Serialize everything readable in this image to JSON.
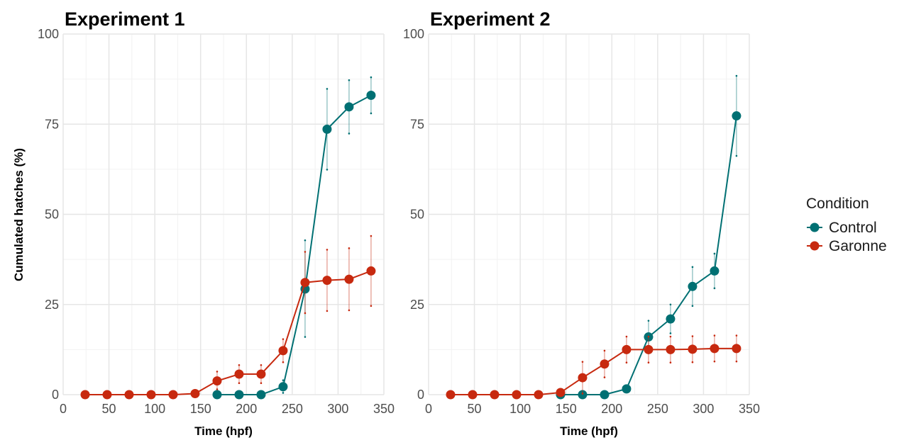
{
  "ylabel": "Cumulated hatches (%)",
  "legend": {
    "title": "Condition",
    "position": "right",
    "entries": [
      {
        "name": "Control",
        "color": "#007073"
      },
      {
        "name": "Garonne",
        "color": "#c7290f"
      }
    ]
  },
  "chart_data": [
    {
      "type": "line",
      "title": "Experiment 1",
      "xlabel": "Time (hpf)",
      "ylabel": "Cumulated hatches (%)",
      "xlim": [
        0,
        350
      ],
      "ylim": [
        0,
        100
      ],
      "xticks": [
        0,
        50,
        100,
        150,
        200,
        250,
        300,
        350
      ],
      "yticks": [
        0,
        25,
        50,
        75,
        100
      ],
      "grid": true,
      "series": [
        {
          "name": "Control",
          "color": "#007073",
          "points": [
            {
              "x": 168,
              "y": 0
            },
            {
              "x": 192,
              "y": 0
            },
            {
              "x": 216,
              "y": 0
            },
            {
              "x": 240,
              "y": 2.2,
              "err": [
                0.5,
                4.0
              ]
            },
            {
              "x": 264,
              "y": 29.3,
              "err": [
                16.0,
                42.8
              ]
            },
            {
              "x": 288,
              "y": 73.6,
              "err": [
                62.4,
                84.8
              ]
            },
            {
              "x": 312,
              "y": 79.8,
              "err": [
                72.4,
                87.2
              ]
            },
            {
              "x": 336,
              "y": 83.0,
              "err": [
                78.0,
                88.0
              ]
            }
          ]
        },
        {
          "name": "Garonne",
          "color": "#c7290f",
          "points": [
            {
              "x": 24,
              "y": 0
            },
            {
              "x": 48,
              "y": 0
            },
            {
              "x": 72,
              "y": 0
            },
            {
              "x": 96,
              "y": 0
            },
            {
              "x": 120,
              "y": 0
            },
            {
              "x": 144,
              "y": 0.3
            },
            {
              "x": 168,
              "y": 3.8,
              "err": [
                1.5,
                6.4
              ]
            },
            {
              "x": 192,
              "y": 5.7,
              "err": [
                3.2,
                8.2
              ]
            },
            {
              "x": 216,
              "y": 5.7,
              "err": [
                3.2,
                8.2
              ]
            },
            {
              "x": 240,
              "y": 12.2,
              "err": [
                9.0,
                15.4
              ]
            },
            {
              "x": 264,
              "y": 31.1,
              "err": [
                22.6,
                39.6
              ]
            },
            {
              "x": 288,
              "y": 31.7,
              "err": [
                23.2,
                40.2
              ]
            },
            {
              "x": 312,
              "y": 32.0,
              "err": [
                23.4,
                40.6
              ]
            },
            {
              "x": 336,
              "y": 34.3,
              "err": [
                24.6,
                44.0
              ]
            }
          ]
        }
      ]
    },
    {
      "type": "line",
      "title": "Experiment 2",
      "xlabel": "Time (hpf)",
      "ylabel": "",
      "xlim": [
        0,
        350
      ],
      "ylim": [
        0,
        100
      ],
      "xticks": [
        0,
        50,
        100,
        150,
        200,
        250,
        300,
        350
      ],
      "yticks": [
        0,
        25,
        50,
        75,
        100
      ],
      "grid": true,
      "series": [
        {
          "name": "Control",
          "color": "#007073",
          "points": [
            {
              "x": 144,
              "y": 0
            },
            {
              "x": 168,
              "y": 0
            },
            {
              "x": 192,
              "y": 0
            },
            {
              "x": 216,
              "y": 1.6,
              "err": [
                1.0,
                2.2
              ]
            },
            {
              "x": 240,
              "y": 16.0,
              "err": [
                11.5,
                20.5
              ]
            },
            {
              "x": 264,
              "y": 21.0,
              "err": [
                17.0,
                25.0
              ]
            },
            {
              "x": 288,
              "y": 30.0,
              "err": [
                24.6,
                35.4
              ]
            },
            {
              "x": 312,
              "y": 34.3,
              "err": [
                29.5,
                39.1
              ]
            },
            {
              "x": 336,
              "y": 77.3,
              "err": [
                66.2,
                88.4
              ]
            }
          ]
        },
        {
          "name": "Garonne",
          "color": "#c7290f",
          "points": [
            {
              "x": 24,
              "y": 0
            },
            {
              "x": 48,
              "y": 0
            },
            {
              "x": 72,
              "y": 0
            },
            {
              "x": 96,
              "y": 0
            },
            {
              "x": 120,
              "y": 0
            },
            {
              "x": 144,
              "y": 0.6
            },
            {
              "x": 168,
              "y": 4.7,
              "err": [
                0.3,
                9.1
              ]
            },
            {
              "x": 192,
              "y": 8.5,
              "err": [
                4.8,
                12.2
              ]
            },
            {
              "x": 216,
              "y": 12.5,
              "err": [
                8.9,
                16.1
              ]
            },
            {
              "x": 240,
              "y": 12.5,
              "err": [
                8.9,
                16.1
              ]
            },
            {
              "x": 264,
              "y": 12.5,
              "err": [
                8.9,
                16.1
              ]
            },
            {
              "x": 288,
              "y": 12.6,
              "err": [
                9.0,
                16.2
              ]
            },
            {
              "x": 312,
              "y": 12.8,
              "err": [
                9.2,
                16.4
              ]
            },
            {
              "x": 336,
              "y": 12.8,
              "err": [
                9.2,
                16.4
              ]
            }
          ]
        }
      ]
    }
  ]
}
